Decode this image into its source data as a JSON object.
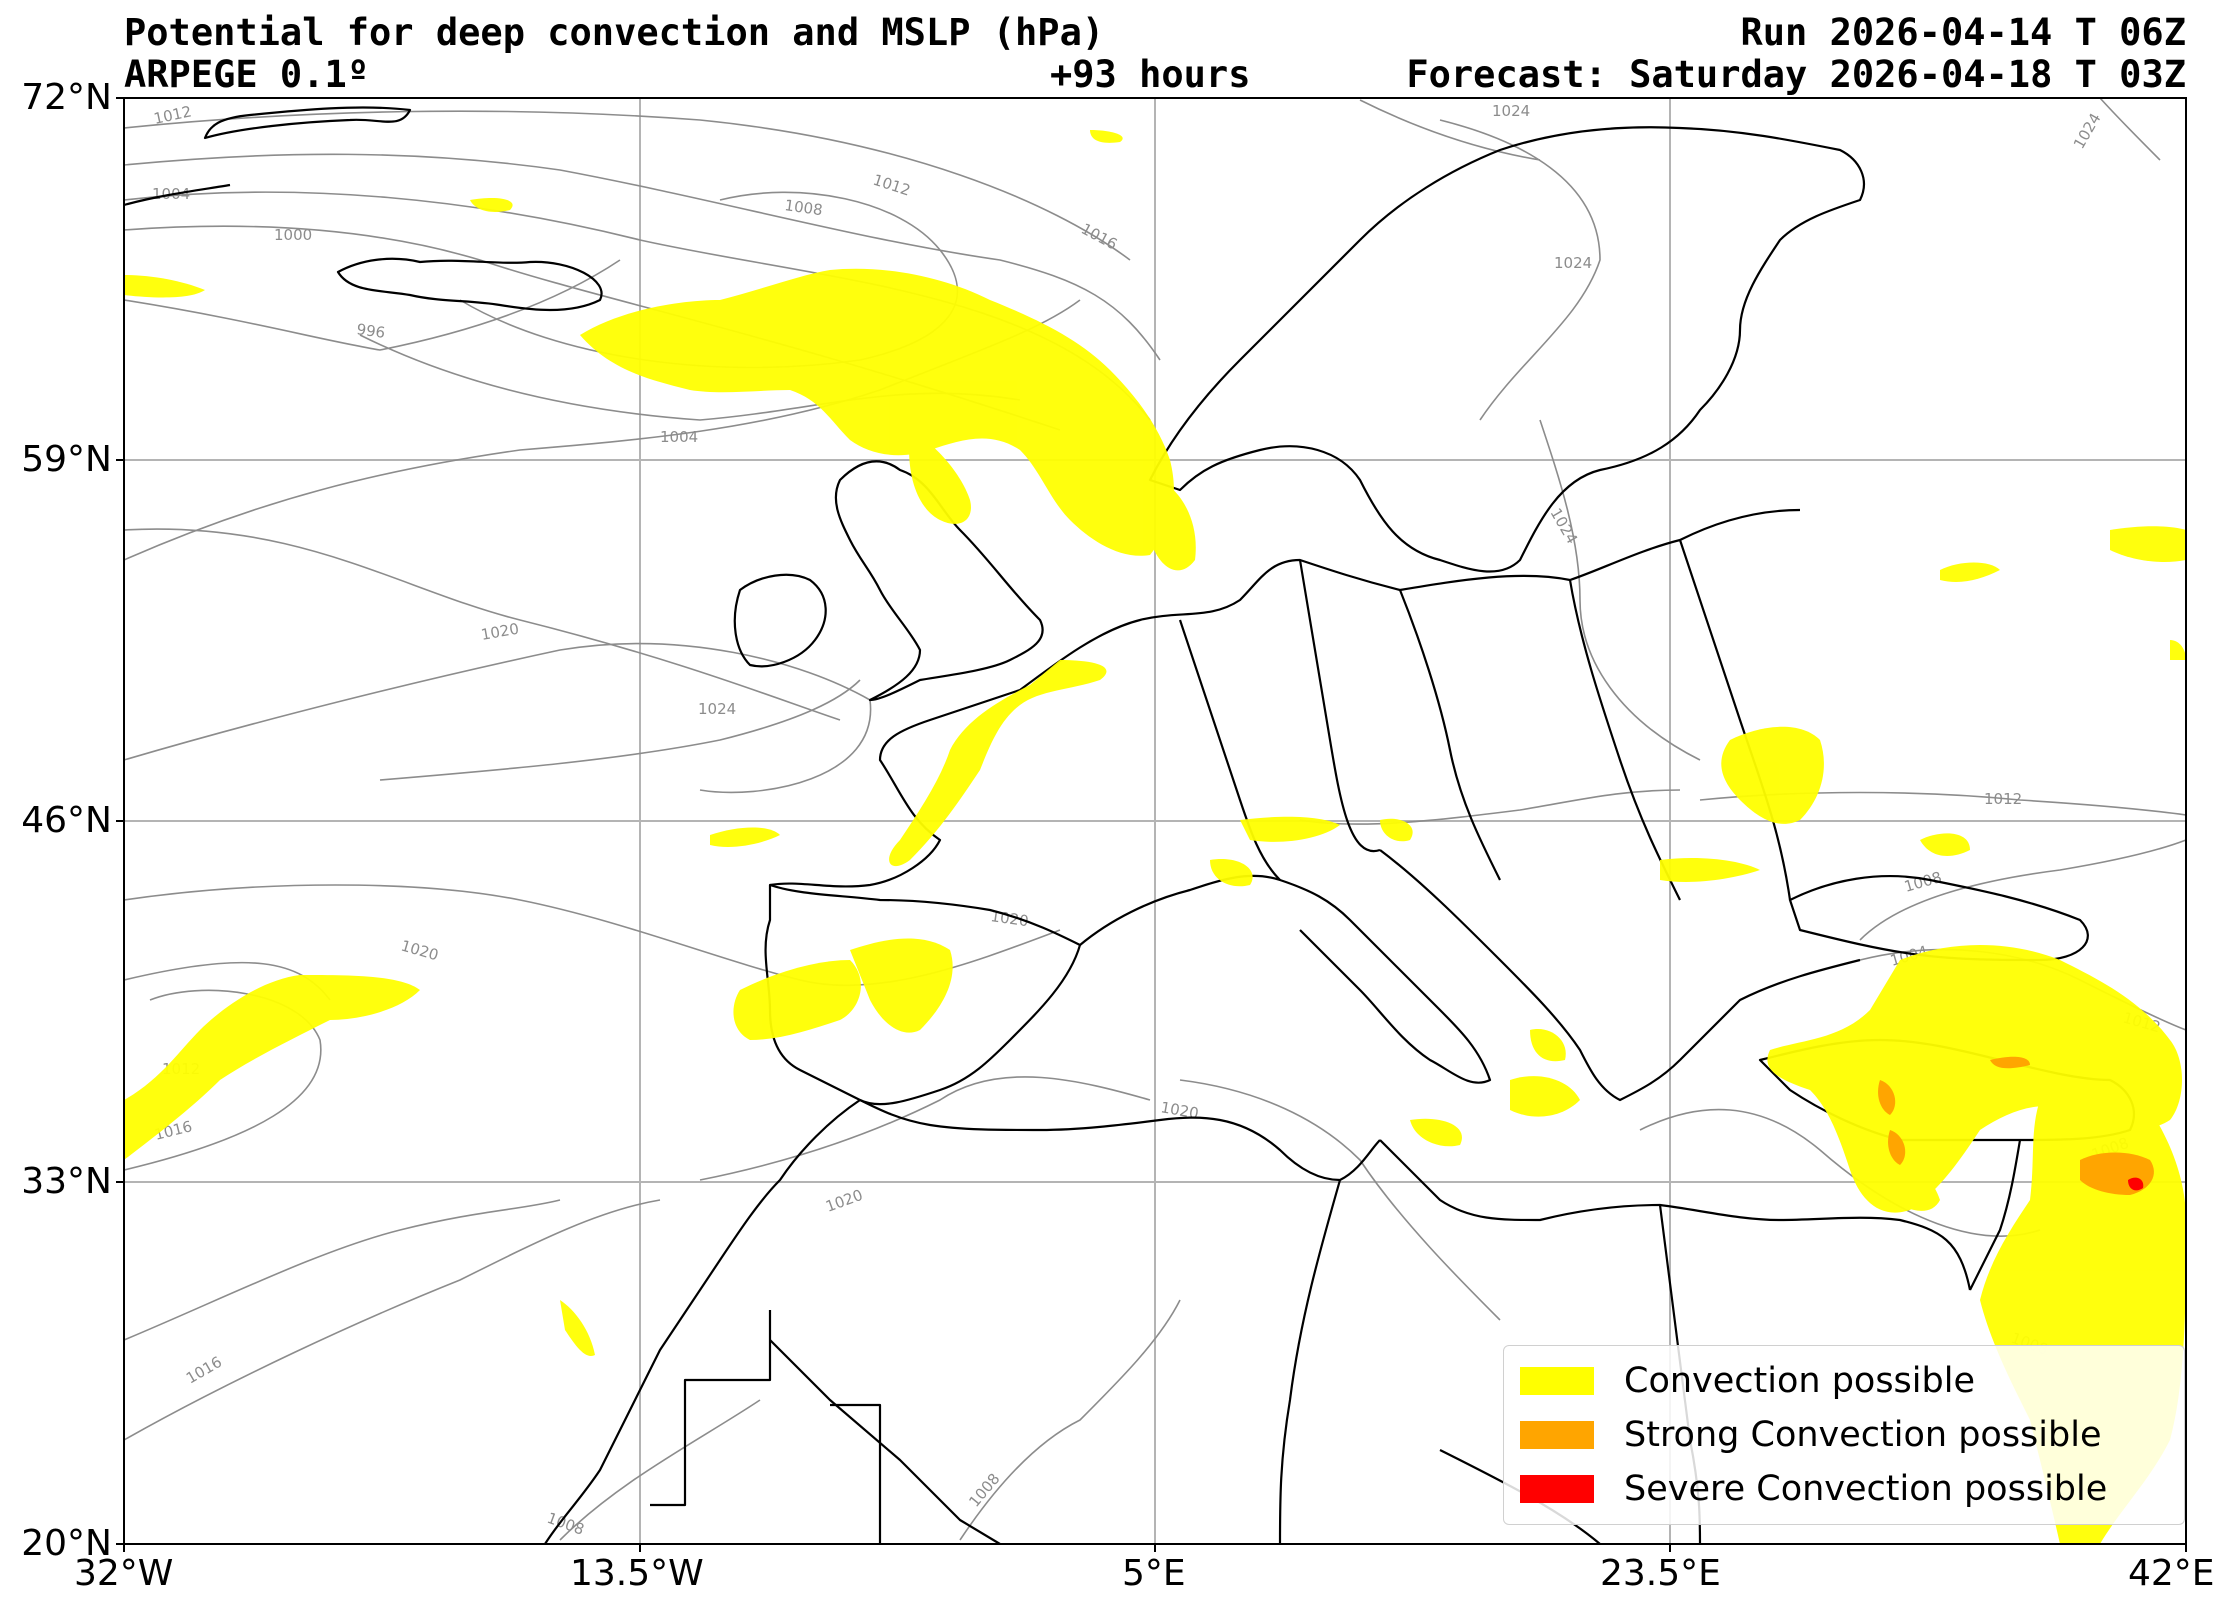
{
  "header": {
    "title": "Potential for deep convection and MSLP (hPa)",
    "model": "ARPEGE 0.1º",
    "lead": "+93 hours",
    "run": "Run 2026-04-14 T 06Z",
    "forecast": "Forecast: Saturday 2026-04-18 T 03Z"
  },
  "axes": {
    "lat_labels": [
      "72°N",
      "59°N",
      "46°N",
      "33°N",
      "20°N"
    ],
    "lon_labels": [
      "32°W",
      "13.5°W",
      "5°E",
      "23.5°E",
      "42°E"
    ],
    "lat_range": [
      20,
      72
    ],
    "lon_range": [
      -32,
      42
    ],
    "grid": true
  },
  "legend": {
    "items": [
      {
        "label": "Convection possible",
        "color": "#ffff00"
      },
      {
        "label": "Strong Convection possible",
        "color": "#ffa500"
      },
      {
        "label": "Severe Convection possible",
        "color": "#ff0000"
      }
    ],
    "placement": "bottom-right"
  },
  "chart_data": {
    "type": "map",
    "isobar_labels": [
      "1012",
      "1004",
      "1000",
      "996",
      "1004",
      "1008",
      "1012",
      "1016",
      "1024",
      "1024",
      "1024",
      "1020",
      "1024",
      "1020",
      "1020",
      "1012",
      "1016",
      "1016",
      "1012",
      "1008",
      "1004",
      "1012",
      "1008",
      "1020",
      "1020",
      "1008",
      "1008",
      "1008",
      "1024"
    ],
    "colors": {
      "isobar": "#8c8c8c",
      "grid": "#b4b4b4",
      "coast": "#000000",
      "convection": "#ffff00",
      "strong": "#ffa500",
      "severe": "#ff0000"
    }
  }
}
